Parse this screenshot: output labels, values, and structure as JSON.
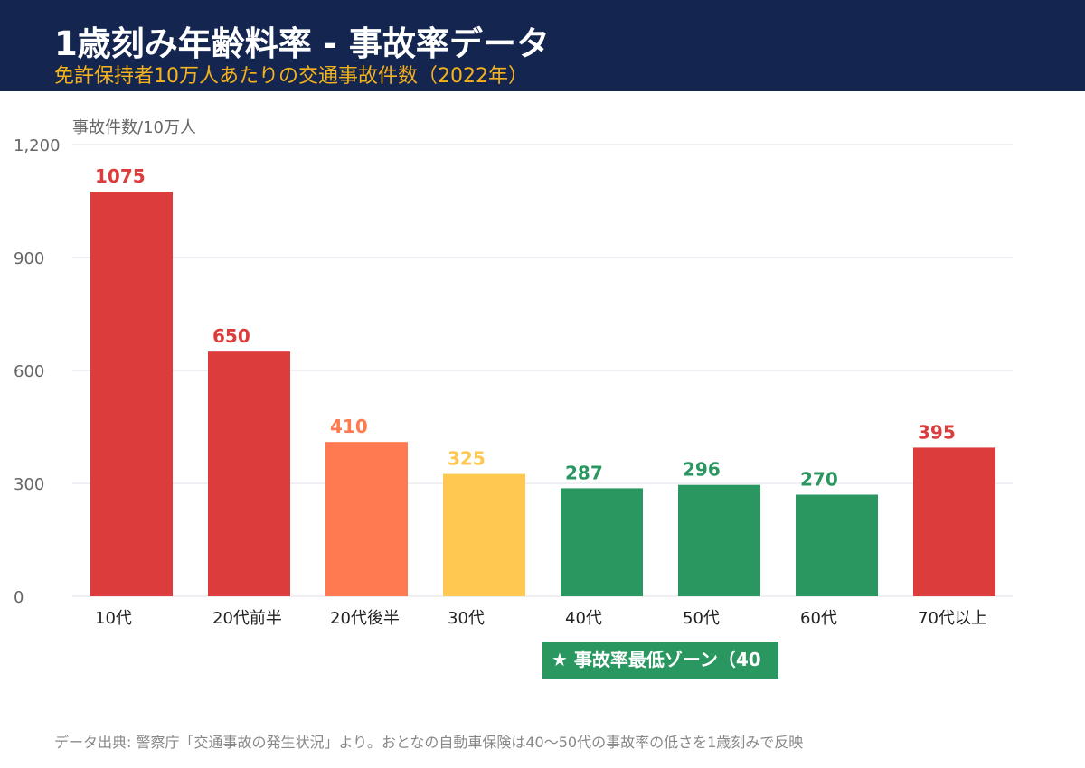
{
  "header": {
    "title": "1歳刻み年齢料率 - 事故率データ",
    "subtitle": "免許保持者10万人あたりの交通事故件数（2022年）"
  },
  "chart_data": {
    "type": "bar",
    "ylabel": "事故件数/10万人",
    "ylim": [
      0,
      1200
    ],
    "yticks": [
      "0",
      "300",
      "600",
      "900",
      "1,200"
    ],
    "grid": true,
    "categories": [
      "10代",
      "20代前半",
      "20代後半",
      "30代",
      "40代",
      "50代",
      "60代",
      "70代以上"
    ],
    "values": [
      1075,
      650,
      410,
      325,
      287,
      296,
      270,
      395
    ],
    "colors": [
      "#dc3c3c",
      "#dc3c3c",
      "#ff7a50",
      "#ffc850",
      "#2a9660",
      "#2a9660",
      "#2a9660",
      "#dc3c3c"
    ]
  },
  "badge": {
    "label": "★ 事故率最低ゾーン（40"
  },
  "footer": {
    "source": "データ出典: 警察庁「交通事故の発生状況」より。おとなの自動車保険は40〜50代の事故率の低さを1歳刻みで反映"
  }
}
